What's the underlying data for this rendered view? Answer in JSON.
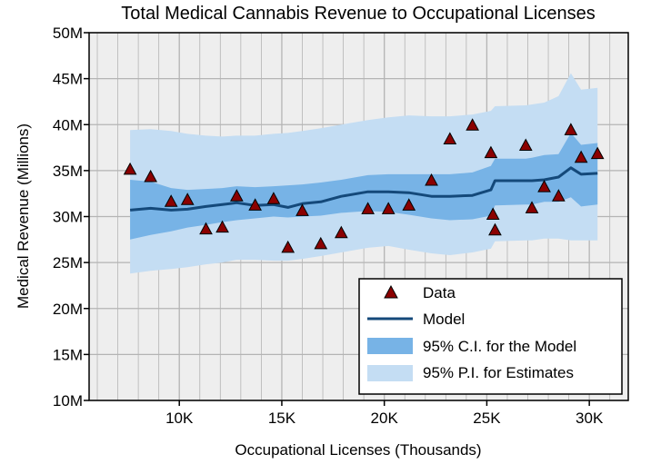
{
  "chart_data": {
    "type": "line",
    "title": "Total Medical Cannabis Revenue to Occupational Licenses",
    "xlabel": "Occupational Licenses (Thousands)",
    "ylabel": "Medical Revenue (Millions)",
    "xlim": [
      5.6,
      31.9
    ],
    "ylim": [
      10,
      50
    ],
    "xticks": [
      10,
      15,
      20,
      25,
      30
    ],
    "xtick_labels": [
      "10K",
      "15K",
      "20K",
      "25K",
      "30K"
    ],
    "yticks": [
      10,
      15,
      20,
      25,
      30,
      35,
      40,
      45,
      50
    ],
    "ytick_labels": [
      "10M",
      "15M",
      "20M",
      "25M",
      "30M",
      "35M",
      "40M",
      "45M",
      "50M"
    ],
    "grid": true,
    "legend_position": "lower-right",
    "legend": {
      "data": "Data",
      "model": "Model",
      "ci": "95% C.I. for the Model",
      "pi": "95% P.I. for Estimates"
    },
    "colors": {
      "pi": "#c4ddf3",
      "ci": "#77b3e6",
      "model": "#14497a",
      "marker": "#8b0000",
      "grid": "#b4b4b4",
      "background": "#eeeeee"
    },
    "series": [
      {
        "name": "Data",
        "kind": "scatter",
        "x": [
          7.6,
          8.6,
          9.6,
          10.4,
          11.3,
          12.1,
          12.8,
          13.7,
          14.6,
          15.3,
          16.0,
          16.9,
          17.9,
          19.2,
          20.2,
          21.2,
          22.3,
          23.2,
          24.3,
          25.2,
          25.3,
          25.4,
          26.9,
          27.2,
          27.8,
          28.5,
          29.1,
          29.6,
          30.4
        ],
        "y": [
          35.1,
          34.3,
          31.6,
          31.8,
          28.6,
          28.8,
          32.2,
          31.2,
          31.9,
          26.6,
          30.6,
          27.0,
          28.2,
          30.8,
          30.8,
          31.2,
          33.9,
          38.4,
          39.9,
          36.9,
          30.2,
          28.5,
          37.7,
          30.9,
          33.2,
          32.2,
          39.4,
          36.4,
          36.8
        ]
      },
      {
        "name": "Model",
        "kind": "line",
        "x": [
          7.6,
          8.6,
          9.6,
          10.4,
          11.3,
          12.1,
          12.8,
          13.7,
          14.6,
          15.3,
          16.0,
          16.9,
          17.9,
          19.2,
          20.2,
          21.2,
          22.3,
          23.2,
          24.3,
          25.2,
          25.4,
          26.9,
          27.2,
          27.8,
          28.5,
          29.1,
          29.6,
          30.4
        ],
        "y": [
          30.7,
          30.9,
          30.7,
          30.8,
          31.1,
          31.3,
          31.5,
          31.2,
          31.3,
          31.0,
          31.4,
          31.6,
          32.2,
          32.7,
          32.7,
          32.6,
          32.2,
          32.2,
          32.3,
          32.9,
          33.9,
          33.9,
          33.9,
          34.0,
          34.3,
          35.3,
          34.6,
          34.7
        ],
        "ci_low": [
          27.5,
          28.0,
          28.4,
          28.8,
          29.1,
          29.4,
          29.6,
          29.8,
          30.0,
          29.9,
          30.0,
          30.1,
          30.4,
          30.6,
          30.5,
          30.2,
          29.8,
          29.6,
          29.7,
          30.1,
          31.2,
          31.3,
          31.3,
          31.6,
          31.6,
          32.1,
          31.1,
          31.3
        ],
        "ci_high": [
          34.0,
          33.8,
          33.1,
          32.9,
          33.0,
          33.1,
          33.3,
          33.2,
          33.3,
          33.4,
          33.5,
          33.7,
          34.0,
          34.5,
          34.6,
          34.6,
          34.6,
          34.6,
          34.8,
          35.5,
          36.3,
          36.3,
          36.4,
          36.7,
          36.8,
          39.1,
          37.8,
          38.0
        ],
        "pi_low": [
          23.8,
          24.1,
          24.3,
          24.5,
          24.8,
          25.0,
          25.3,
          25.3,
          25.2,
          25.2,
          25.4,
          25.7,
          26.1,
          26.6,
          26.8,
          26.4,
          26.0,
          25.8,
          26.1,
          26.5,
          27.3,
          27.4,
          27.4,
          27.6,
          27.6,
          27.4,
          27.4,
          27.4
        ],
        "pi_high": [
          39.4,
          39.5,
          39.3,
          39.0,
          38.8,
          38.7,
          38.8,
          38.8,
          39.0,
          39.1,
          39.3,
          39.6,
          40.0,
          40.5,
          40.8,
          41.0,
          40.9,
          40.9,
          41.1,
          41.5,
          42.0,
          42.1,
          42.2,
          42.4,
          43.1,
          45.6,
          43.8,
          44.0
        ]
      }
    ]
  }
}
